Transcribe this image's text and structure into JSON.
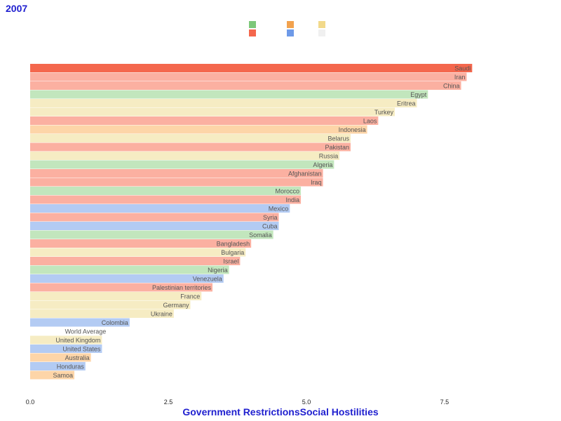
{
  "header": {
    "year": "2007"
  },
  "legend": {
    "swatches": [
      {
        "color": "#7dc87a"
      },
      {
        "color": "#f4674d"
      },
      {
        "color": "#f2a24e"
      },
      {
        "color": "#6e9ae8"
      },
      {
        "color": "#f2d98a"
      },
      {
        "color": "#f0f0f0"
      }
    ]
  },
  "axis": {
    "title": "Government RestrictionsSocial Hostilities"
  },
  "chart_data": {
    "type": "bar",
    "orientation": "horizontal",
    "title": "2007",
    "xlabel": "Government RestrictionsSocial Hostilities",
    "xlim": [
      0,
      9.5
    ],
    "xticks": [
      0.0,
      2.5,
      5.0,
      7.5
    ],
    "xtick_labels": [
      "0.0",
      "2.5",
      "5.0",
      "7.5"
    ],
    "grid": false,
    "categories": [
      "Saudi",
      "Iran",
      "China",
      "Egypt",
      "Eritrea",
      "Turkey",
      "Laos",
      "Indonesia",
      "Belarus",
      "Pakistan",
      "Russia",
      "Algeria",
      "Afghanistan",
      "Iraq",
      "Morocco",
      "India",
      "Mexico",
      "Syria",
      "Cuba",
      "Somalia",
      "Bangladesh",
      "Bulgaria",
      "Israel",
      "Nigeria",
      "Venezuela",
      "Palestinian territories",
      "France",
      "Germany",
      "Ukraine",
      "Colombia",
      "World Average",
      "United Kingdom",
      "United States",
      "Australia",
      "Honduras",
      "Samoa"
    ],
    "values": [
      8.0,
      7.9,
      7.8,
      7.2,
      7.0,
      6.6,
      6.3,
      6.1,
      5.8,
      5.8,
      5.6,
      5.5,
      5.3,
      5.3,
      4.9,
      4.9,
      4.7,
      4.5,
      4.5,
      4.4,
      4.0,
      3.9,
      3.8,
      3.6,
      3.5,
      3.3,
      3.1,
      2.9,
      2.6,
      1.8,
      1.4,
      1.3,
      1.3,
      1.1,
      1.0,
      0.8
    ],
    "colors": [
      "#f4674d",
      "#fbb0a1",
      "#fbb0a1",
      "#c2e6bd",
      "#f6ecc3",
      "#f6ecc3",
      "#fbb0a1",
      "#fdd5a8",
      "#f6ecc3",
      "#fbb0a1",
      "#f6ecc3",
      "#c2e6bd",
      "#fbb0a1",
      "#fbb0a1",
      "#c2e6bd",
      "#fbb0a1",
      "#b3cbf3",
      "#fbb0a1",
      "#b3cbf3",
      "#c2e6bd",
      "#fbb0a1",
      "#f6ecc3",
      "#fbb0a1",
      "#c2e6bd",
      "#b3cbf3",
      "#fbb0a1",
      "#f6ecc3",
      "#f6ecc3",
      "#f6ecc3",
      "#b3cbf3",
      "#ffffff",
      "#f6ecc3",
      "#b3cbf3",
      "#fdd5a8",
      "#b3cbf3",
      "#fdd5a8"
    ]
  }
}
